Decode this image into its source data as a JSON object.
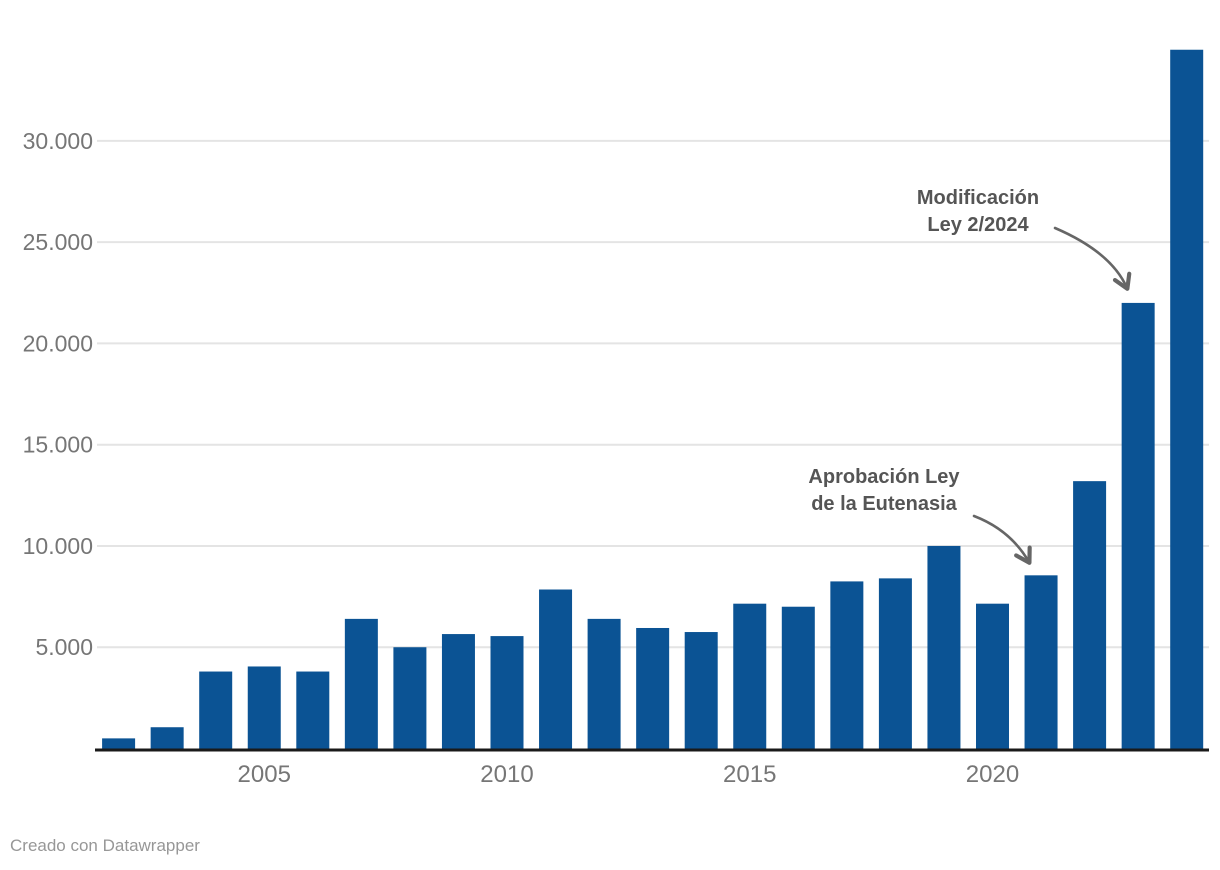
{
  "chart_data": {
    "type": "bar",
    "title": "",
    "xlabel": "",
    "ylabel": "",
    "categories": [
      2002,
      2003,
      2004,
      2005,
      2006,
      2007,
      2008,
      2009,
      2010,
      2011,
      2012,
      2013,
      2014,
      2015,
      2016,
      2017,
      2018,
      2019,
      2020,
      2021,
      2022,
      2023,
      2024
    ],
    "values": [
      500,
      1050,
      3800,
      4050,
      3800,
      6400,
      5000,
      5650,
      5550,
      7850,
      6400,
      5950,
      5750,
      7150,
      7000,
      8250,
      8400,
      10000,
      7150,
      8550,
      13200,
      22000,
      34500
    ],
    "ylim": [
      0,
      36900
    ],
    "grid": "horizontal",
    "legend": "none",
    "y_ticks": [
      {
        "value": 5000,
        "label": "5.000"
      },
      {
        "value": 10000,
        "label": "10.000"
      },
      {
        "value": 15000,
        "label": "15.000"
      },
      {
        "value": 20000,
        "label": "20.000"
      },
      {
        "value": 25000,
        "label": "25.000"
      },
      {
        "value": 30000,
        "label": "30.000"
      }
    ],
    "x_ticks": [
      {
        "year": 2005,
        "label": "2005"
      },
      {
        "year": 2010,
        "label": "2010"
      },
      {
        "year": 2015,
        "label": "2015"
      },
      {
        "year": 2020,
        "label": "2020"
      }
    ]
  },
  "annotations": [
    {
      "id": "modificacion-ley",
      "lines": [
        "Modificación",
        "Ley 2/2024"
      ],
      "target_year": 2023
    },
    {
      "id": "aprobacion-ley",
      "lines": [
        "Aprobación Ley",
        "de la Eutenasia"
      ],
      "target_year": 2021
    }
  ],
  "footer": {
    "text": "Creado con Datawrapper"
  },
  "colors": {
    "bar": "#0b5394",
    "gridline": "#e4e4e4",
    "axis_line": "#1a1a1a",
    "tick_label": "#767676",
    "annotation_text": "#555555",
    "arrow": "#666666",
    "footer_text": "#979797",
    "background": "#ffffff"
  }
}
